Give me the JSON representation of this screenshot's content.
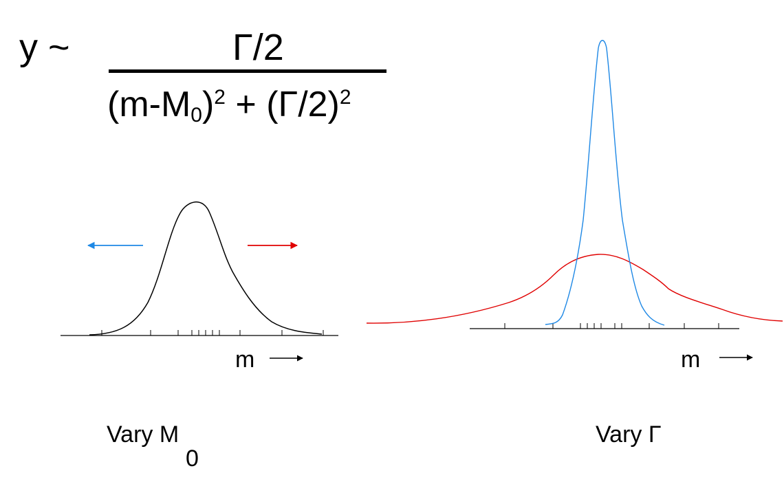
{
  "formula": {
    "lhs": "y ~",
    "numerator": "Γ/2",
    "den_open": "(m-M",
    "den_sub": "0",
    "den_mid": ")",
    "den_sup1": "2",
    "den_plus": " + (Γ/2)",
    "den_sup2": "2"
  },
  "left_panel": {
    "axis_label": "m",
    "caption": "Vary M",
    "caption_sub": "0",
    "colors": {
      "curve": "#000000",
      "arrow_left": "#1e88e5",
      "arrow_right": "#e00000"
    }
  },
  "right_panel": {
    "axis_label": "m",
    "caption": "Vary Γ",
    "colors": {
      "narrow_curve": "#1e88e5",
      "wide_curve": "#e00000",
      "axis": "#000000"
    }
  }
}
